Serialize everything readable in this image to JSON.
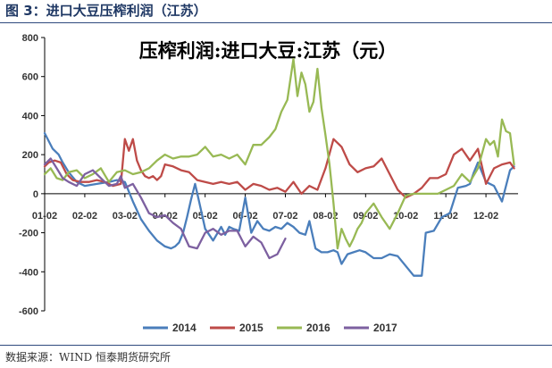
{
  "header": {
    "figure_title": "图 3：进口大豆压榨利润（江苏）",
    "source": "数据来源：WIND 恒泰期货研究所"
  },
  "chart_data": {
    "type": "line",
    "title": "压榨利润:进口大豆:江苏（元）",
    "xlabel": "",
    "ylabel": "",
    "x_tick_labels": [
      "01-02",
      "02-02",
      "03-02",
      "04-02",
      "05-02",
      "06-02",
      "07-02",
      "08-02",
      "09-02",
      "10-02",
      "11-02",
      "12-02"
    ],
    "y_ticks": [
      -600,
      -400,
      -200,
      0,
      200,
      400,
      600,
      800
    ],
    "ylim": [
      -600,
      800
    ],
    "xlim": [
      0,
      11.8
    ],
    "grid": false,
    "legend_position": "bottom",
    "series": [
      {
        "name": "2014",
        "color": "#4a7ebb",
        "x": [
          0,
          0.2,
          0.35,
          0.45,
          0.6,
          0.8,
          1.0,
          1.3,
          1.6,
          1.8,
          2.0,
          2.2,
          2.4,
          2.6,
          2.8,
          3.0,
          3.15,
          3.25,
          3.35,
          3.45,
          3.55,
          3.65,
          3.75,
          3.85,
          4.0,
          4.2,
          4.4,
          4.5,
          4.6,
          4.7,
          4.85,
          5.0,
          5.15,
          5.3,
          5.45,
          5.6,
          5.75,
          5.9,
          6.05,
          6.2,
          6.35,
          6.5,
          6.6,
          6.75,
          6.9,
          7.05,
          7.2,
          7.3,
          7.4,
          7.55,
          7.7,
          7.85,
          8.0,
          8.2,
          8.4,
          8.6,
          8.8,
          9.0,
          9.2,
          9.4,
          9.5,
          9.7,
          9.9,
          10.1,
          10.3,
          10.5,
          10.6,
          10.7,
          10.8,
          10.9,
          11.0,
          11.2,
          11.4,
          11.6,
          11.7
        ],
        "values": [
          310,
          230,
          200,
          160,
          110,
          60,
          40,
          50,
          60,
          70,
          60,
          -40,
          -130,
          -190,
          -240,
          -270,
          -280,
          -270,
          -250,
          -200,
          -120,
          -30,
          50,
          -40,
          -180,
          -240,
          -170,
          -210,
          -170,
          -180,
          -190,
          -20,
          -200,
          -140,
          -180,
          -190,
          -170,
          -180,
          -150,
          -170,
          -200,
          -210,
          -140,
          -280,
          -300,
          -300,
          -290,
          -300,
          -360,
          -310,
          -300,
          -290,
          -300,
          -330,
          -330,
          -310,
          -320,
          -370,
          -420,
          -420,
          -200,
          -190,
          -120,
          -100,
          30,
          40,
          50,
          110,
          160,
          110,
          60,
          40,
          -40,
          120,
          140
        ]
      },
      {
        "name": "2015",
        "color": "#be4b48",
        "x": [
          0,
          0.1,
          0.25,
          0.4,
          0.55,
          0.7,
          0.9,
          1.1,
          1.3,
          1.5,
          1.7,
          1.9,
          2.0,
          2.1,
          2.2,
          2.3,
          2.4,
          2.5,
          2.6,
          2.7,
          2.8,
          2.9,
          3.0,
          3.2,
          3.4,
          3.6,
          3.8,
          4.0,
          4.2,
          4.4,
          4.6,
          4.8,
          5.0,
          5.2,
          5.4,
          5.6,
          5.8,
          6.0,
          6.2,
          6.4,
          6.6,
          6.8,
          7.0,
          7.2,
          7.4,
          7.6,
          7.8,
          8.0,
          8.2,
          8.4,
          8.6,
          8.8,
          9.0,
          9.2,
          9.4,
          9.6,
          9.8,
          10.0,
          10.2,
          10.4,
          10.6,
          10.8,
          11.0,
          11.2,
          11.4,
          11.6,
          11.7
        ],
        "values": [
          140,
          160,
          170,
          160,
          100,
          70,
          60,
          60,
          70,
          60,
          40,
          50,
          280,
          220,
          280,
          170,
          120,
          90,
          80,
          90,
          70,
          90,
          150,
          140,
          120,
          110,
          70,
          60,
          50,
          60,
          50,
          60,
          20,
          50,
          40,
          20,
          30,
          10,
          60,
          0,
          40,
          20,
          130,
          280,
          240,
          150,
          110,
          130,
          140,
          180,
          100,
          20,
          -20,
          0,
          30,
          80,
          80,
          100,
          200,
          230,
          170,
          230,
          50,
          130,
          150,
          160,
          130
        ]
      },
      {
        "name": "2016",
        "color": "#98b954",
        "x": [
          0,
          0.15,
          0.3,
          0.45,
          0.6,
          0.8,
          1.0,
          1.2,
          1.4,
          1.6,
          1.8,
          2.0,
          2.2,
          2.4,
          2.6,
          2.8,
          3.0,
          3.2,
          3.4,
          3.6,
          3.8,
          4.0,
          4.2,
          4.4,
          4.6,
          4.8,
          5.0,
          5.2,
          5.4,
          5.6,
          5.75,
          5.9,
          6.05,
          6.2,
          6.3,
          6.4,
          6.5,
          6.6,
          6.7,
          6.8,
          6.9,
          7.0,
          7.1,
          7.2,
          7.3,
          7.4,
          7.5,
          7.6,
          7.7,
          7.8,
          7.9,
          8.0,
          8.2,
          8.4,
          8.6,
          8.8,
          9.0,
          9.2,
          9.4,
          9.6,
          9.8,
          10.0,
          10.2,
          10.4,
          10.6,
          10.8,
          11.0,
          11.1,
          11.2,
          11.3,
          11.4,
          11.5,
          11.6,
          11.7
        ],
        "values": [
          100,
          130,
          80,
          70,
          110,
          120,
          80,
          100,
          130,
          60,
          110,
          120,
          100,
          110,
          130,
          170,
          200,
          180,
          190,
          190,
          200,
          240,
          190,
          200,
          180,
          200,
          150,
          250,
          250,
          290,
          330,
          420,
          480,
          690,
          500,
          620,
          560,
          420,
          470,
          640,
          440,
          300,
          150,
          -50,
          -280,
          -180,
          -230,
          -270,
          -230,
          -180,
          -150,
          -100,
          -50,
          -120,
          -180,
          -100,
          -10,
          0,
          0,
          0,
          0,
          20,
          40,
          100,
          60,
          130,
          280,
          250,
          270,
          190,
          380,
          320,
          310,
          150
        ]
      },
      {
        "name": "2017",
        "color": "#7d60a0",
        "x": [
          0,
          0.15,
          0.3,
          0.45,
          0.6,
          0.8,
          1.0,
          1.2,
          1.4,
          1.6,
          1.8,
          1.9,
          2.0,
          2.2,
          2.4,
          2.6,
          2.8,
          3.0,
          3.2,
          3.4,
          3.6,
          3.8,
          4.0,
          4.2,
          4.4,
          4.6,
          4.8,
          5.0,
          5.2,
          5.4,
          5.6,
          5.8,
          6.0
        ],
        "values": [
          150,
          180,
          130,
          80,
          60,
          40,
          100,
          120,
          80,
          40,
          50,
          90,
          30,
          50,
          -20,
          -100,
          -120,
          -110,
          -150,
          -180,
          -270,
          -280,
          -200,
          -180,
          -210,
          -190,
          -190,
          -270,
          -220,
          -250,
          -330,
          -310,
          -230
        ]
      }
    ]
  },
  "legend": {
    "items": [
      {
        "label": "2014",
        "color": "#4a7ebb"
      },
      {
        "label": "2015",
        "color": "#be4b48"
      },
      {
        "label": "2016",
        "color": "#98b954"
      },
      {
        "label": "2017",
        "color": "#7d60a0"
      }
    ]
  }
}
